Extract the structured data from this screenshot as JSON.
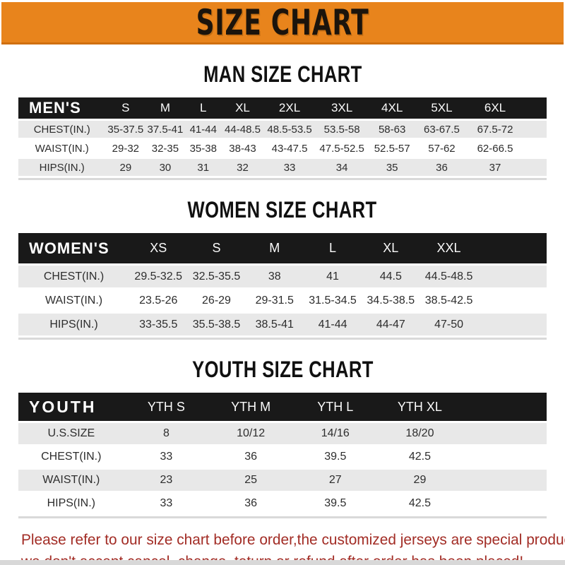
{
  "banner": {
    "title": "SIZE CHART"
  },
  "sections": [
    {
      "heading": "MAN SIZE CHART",
      "table": {
        "header_label": "MEN'S",
        "columns": [
          "S",
          "M",
          "L",
          "XL",
          "2XL",
          "3XL",
          "4XL",
          "5XL",
          "6XL"
        ],
        "rows": [
          {
            "label": "CHEST(IN.)",
            "values": [
              "35-37.5",
              "37.5-41",
              "41-44",
              "44-48.5",
              "48.5-53.5",
              "53.5-58",
              "58-63",
              "63-67.5",
              "67.5-72"
            ]
          },
          {
            "label": "WAIST(IN.)",
            "values": [
              "29-32",
              "32-35",
              "35-38",
              "38-43",
              "43-47.5",
              "47.5-52.5",
              "52.5-57",
              "57-62",
              "62-66.5"
            ]
          },
          {
            "label": "HIPS(IN.)",
            "values": [
              "29",
              "30",
              "31",
              "32",
              "33",
              "34",
              "35",
              "36",
              "37"
            ]
          }
        ]
      }
    },
    {
      "heading": "WOMEN SIZE CHART",
      "table": {
        "header_label": "WOMEN'S",
        "columns": [
          "XS",
          "S",
          "M",
          "L",
          "XL",
          "XXL"
        ],
        "rows": [
          {
            "label": "CHEST(IN.)",
            "values": [
              "29.5-32.5",
              "32.5-35.5",
              "38",
              "41",
              "44.5",
              "44.5-48.5"
            ]
          },
          {
            "label": "WAIST(IN.)",
            "values": [
              "23.5-26",
              "26-29",
              "29-31.5",
              "31.5-34.5",
              "34.5-38.5",
              "38.5-42.5"
            ]
          },
          {
            "label": "HIPS(IN.)",
            "values": [
              "33-35.5",
              "35.5-38.5",
              "38.5-41",
              "41-44",
              "44-47",
              "47-50"
            ]
          }
        ]
      }
    },
    {
      "heading": "YOUTH SIZE CHART",
      "table": {
        "header_label": "YOUTH",
        "columns": [
          "YTH S",
          "YTH M",
          "YTH L",
          "YTH XL"
        ],
        "rows": [
          {
            "label": "U.S.SIZE",
            "values": [
              "8",
              "10/12",
              "14/16",
              "18/20"
            ]
          },
          {
            "label": "CHEST(IN.)",
            "values": [
              "33",
              "36",
              "39.5",
              "42.5"
            ]
          },
          {
            "label": "WAIST(IN.)",
            "values": [
              "23",
              "25",
              "27",
              "29"
            ]
          },
          {
            "label": "HIPS(IN.)",
            "values": [
              "33",
              "36",
              "39.5",
              "42.5"
            ]
          }
        ]
      }
    }
  ],
  "footer": {
    "line1": "Please refer to our size chart before order,the customized jerseys are special products,",
    "line2": "we don't accept cancel, change, teturn or refund after order has been placed!"
  },
  "colors": {
    "banner_orange": "#E8841C",
    "banner_edge": "#D06F10",
    "header_bar_black": "#191919",
    "row_shade_gray": "#E8E8E8",
    "footer_red": "#A22C25"
  }
}
